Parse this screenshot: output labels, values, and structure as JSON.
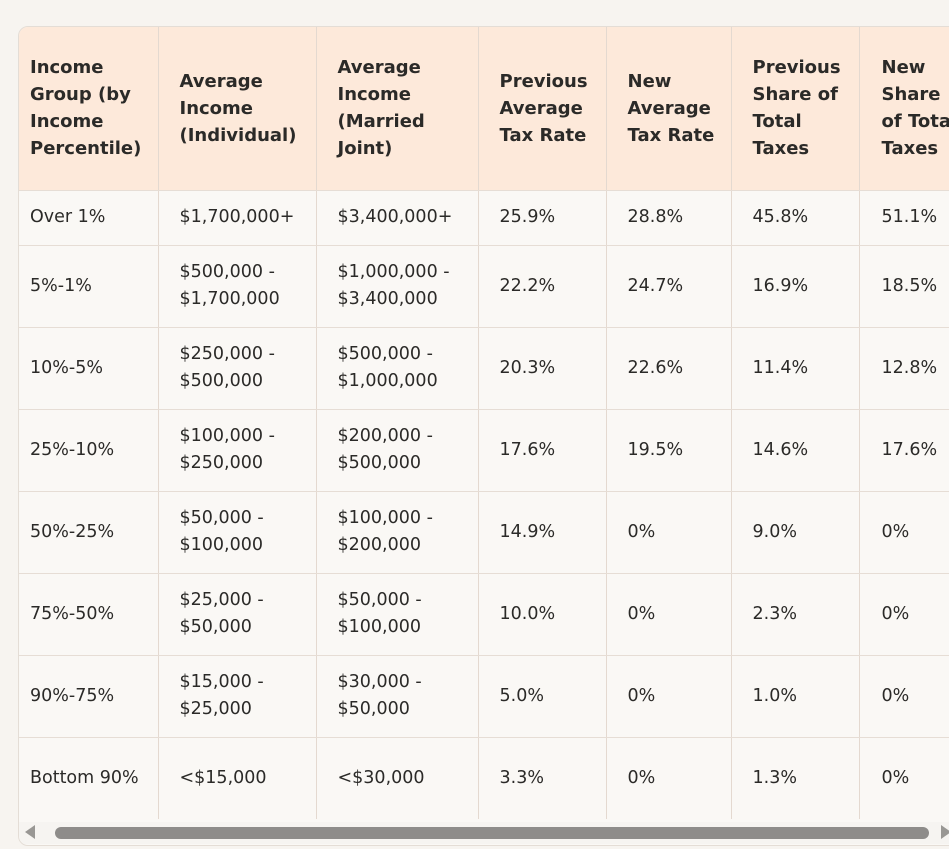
{
  "table": {
    "headers": [
      "Income Group (by Income Percentile)",
      "Average Income (Individual)",
      "Average Income (Married Joint)",
      "Previous Average Tax Rate",
      "New Average Tax Rate",
      "Previous Share of Total Taxes",
      "New Share of Total Taxes"
    ],
    "rows": [
      [
        "Over 1%",
        "$1,700,000+",
        "$3,400,000+",
        "25.9%",
        "28.8%",
        "45.8%",
        "51.1%"
      ],
      [
        "5%-1%",
        "$500,000 - $1,700,000",
        "$1,000,000 - $3,400,000",
        "22.2%",
        "24.7%",
        "16.9%",
        "18.5%"
      ],
      [
        "10%-5%",
        "$250,000 - $500,000",
        "$500,000 - $1,000,000",
        "20.3%",
        "22.6%",
        "11.4%",
        "12.8%"
      ],
      [
        "25%-10%",
        "$100,000 - $250,000",
        "$200,000 - $500,000",
        "17.6%",
        "19.5%",
        "14.6%",
        "17.6%"
      ],
      [
        "50%-25%",
        "$50,000 - $100,000",
        "$100,000 - $200,000",
        "14.9%",
        "0%",
        "9.0%",
        "0%"
      ],
      [
        "75%-50%",
        "$25,000 - $50,000",
        "$50,000 - $100,000",
        "10.0%",
        "0%",
        "2.3%",
        "0%"
      ],
      [
        "90%-75%",
        "$15,000 - $25,000",
        "$30,000 - $50,000",
        "5.0%",
        "0%",
        "1.0%",
        "0%"
      ],
      [
        "Bottom 90%",
        "<$15,000",
        "<$30,000",
        "3.3%",
        "0%",
        "1.3%",
        "0%"
      ]
    ]
  },
  "scrollbar": {
    "left_arrow_icon": "triangle-left-icon",
    "right_arrow_icon": "triangle-right-icon"
  }
}
